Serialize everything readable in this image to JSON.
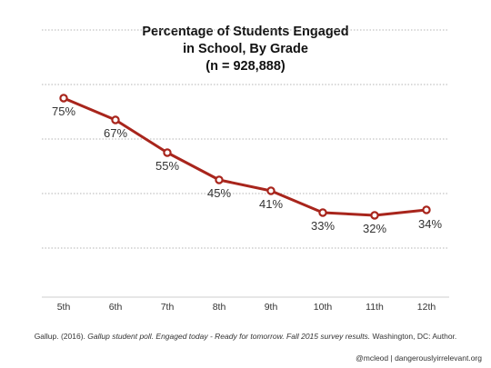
{
  "chart_data": {
    "type": "line",
    "title_lines": [
      "Percentage of Students Engaged",
      "in School, By Grade",
      "(n = 928,888)"
    ],
    "categories": [
      "5th",
      "6th",
      "7th",
      "8th",
      "9th",
      "10th",
      "11th",
      "12th"
    ],
    "values": [
      75,
      67,
      55,
      45,
      41,
      33,
      32,
      34
    ],
    "value_labels": [
      "75%",
      "67%",
      "55%",
      "45%",
      "41%",
      "33%",
      "32%",
      "34%"
    ],
    "ylim": [
      0,
      100
    ],
    "gridlines": [
      20,
      40,
      60,
      80,
      100
    ],
    "grid": true,
    "legend": "none",
    "line_color": "#a8251c",
    "marker_fill": "#ffffff"
  },
  "footer": {
    "citation_prefix": "Gallup. (2016). ",
    "citation_italic": "Gallup student poll. Engaged today - Ready for tomorrow. Fall 2015 survey results.",
    "citation_suffix": " Washington, DC: Author.",
    "credit": "@mcleod | dangerouslyirrelevant.org"
  }
}
